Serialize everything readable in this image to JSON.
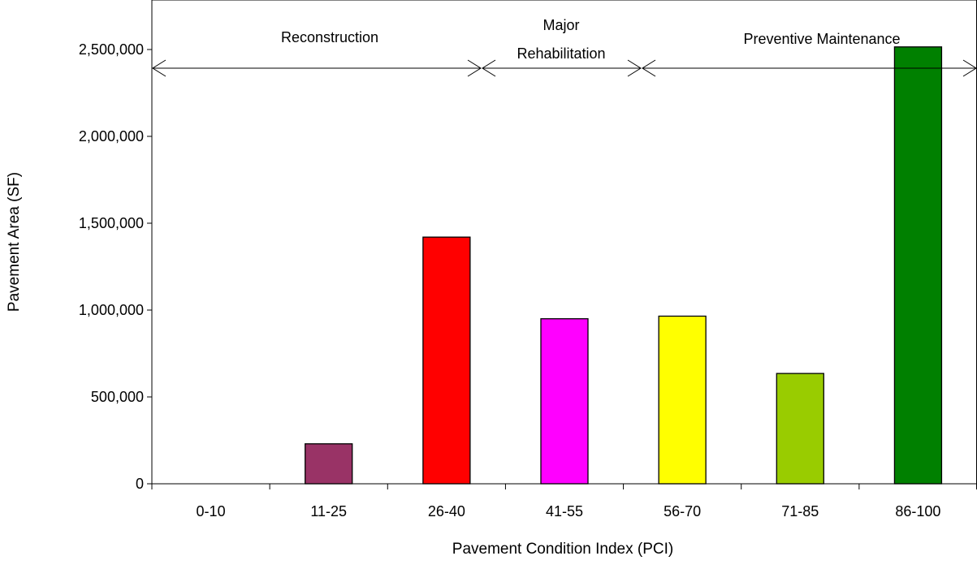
{
  "chart_data": {
    "type": "bar",
    "title": "",
    "xlabel": "Pavement Condition Index (PCI)",
    "ylabel": "Pavement Area (SF)",
    "categories": [
      "0-10",
      "11-25",
      "26-40",
      "41-55",
      "56-70",
      "71-85",
      "86-100"
    ],
    "values": [
      0,
      230000,
      1420000,
      950000,
      965000,
      635000,
      2515000
    ],
    "colors": [
      "#993366",
      "#993366",
      "#ff0000",
      "#ff00ff",
      "#ffff00",
      "#99cc00",
      "#008000"
    ],
    "ylim": [
      0,
      2500000
    ],
    "yticks": [
      0,
      500000,
      1000000,
      1500000,
      2000000,
      2500000
    ],
    "ytick_labels": [
      "0",
      "500,000",
      "1,000,000",
      "1,500,000",
      "2,000,000",
      "2,500,000"
    ],
    "grid": false,
    "legend": "none",
    "annotations": {
      "ranges": [
        {
          "label_lines": [
            "Reconstruction"
          ],
          "from_category": "0-10",
          "to_category": "26-40"
        },
        {
          "label_lines": [
            "Major",
            "Rehabilitation"
          ],
          "from_category": "41-55",
          "to_category": "41-55"
        },
        {
          "label_lines": [
            "Preventive Maintenance"
          ],
          "from_category": "56-70",
          "to_category": "86-100"
        }
      ]
    }
  }
}
